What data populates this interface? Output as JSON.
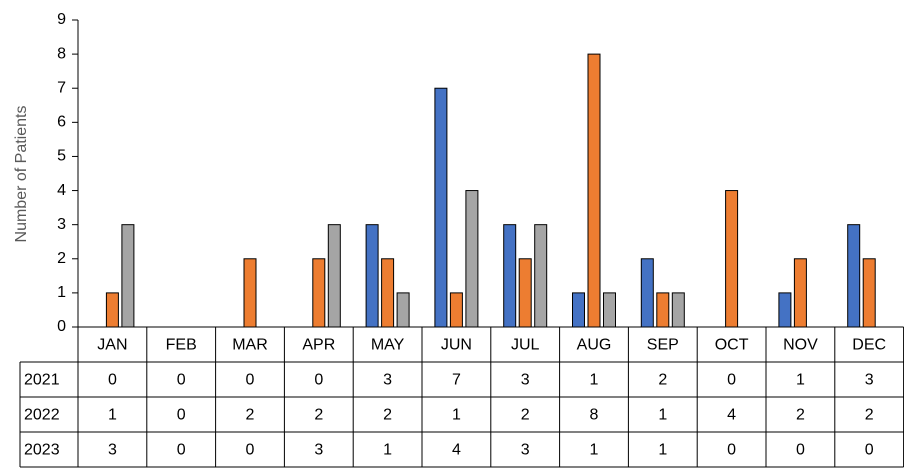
{
  "chart_data": {
    "type": "bar",
    "y_label": "Number of Patients",
    "categories": [
      "JAN",
      "FEB",
      "MAR",
      "APR",
      "MAY",
      "JUN",
      "JUL",
      "AUG",
      "SEP",
      "OCT",
      "NOV",
      "DEC"
    ],
    "series": [
      {
        "name": "2021",
        "color": "#4472c4",
        "values": [
          0,
          0,
          0,
          0,
          3,
          7,
          3,
          1,
          2,
          0,
          1,
          3
        ]
      },
      {
        "name": "2022",
        "color": "#ed7d31",
        "values": [
          1,
          0,
          2,
          2,
          2,
          1,
          2,
          8,
          1,
          4,
          2,
          2
        ]
      },
      {
        "name": "2023",
        "color": "#a5a5a5",
        "values": [
          3,
          0,
          0,
          3,
          1,
          4,
          3,
          1,
          1,
          0,
          0,
          0
        ]
      }
    ],
    "ylim": [
      0,
      9
    ],
    "yticks": [
      0,
      1,
      2,
      3,
      4,
      5,
      6,
      7,
      8,
      9
    ]
  }
}
